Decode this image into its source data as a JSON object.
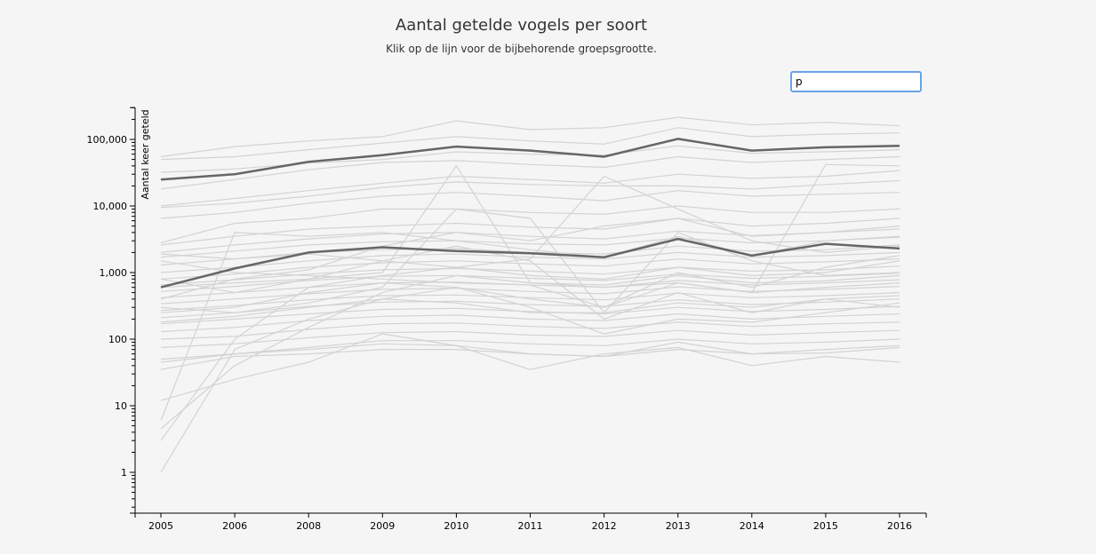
{
  "title": "Aantal getelde vogels per soort",
  "subtitle": "Klik op de lijn voor de bijbehorende groepsgrootte.",
  "search": {
    "value": "p"
  },
  "colors": {
    "background": "#f5f5f5",
    "line_default": "#d3d3d3",
    "line_highlight": "#666666",
    "axis": "#000000"
  },
  "chart_data": {
    "type": "line",
    "title": "Aantal getelde vogels per soort",
    "ylabel": "Aantal keer geteld",
    "xlabel": "",
    "yscale": "log",
    "ylim": [
      0.3,
      300000
    ],
    "categories": [
      "2005",
      "2006",
      "2008",
      "2009",
      "2010",
      "2011",
      "2012",
      "2013",
      "2014",
      "2015",
      "2016"
    ],
    "y_ticks": [
      {
        "value": 1,
        "label": "1"
      },
      {
        "value": 10,
        "label": "10"
      },
      {
        "value": 100,
        "label": "100"
      },
      {
        "value": 1000,
        "label": "1,000"
      },
      {
        "value": 10000,
        "label": "10,000"
      },
      {
        "value": 100000,
        "label": "100,000"
      }
    ],
    "highlighted_series": [
      {
        "values": [
          25000,
          30000,
          46000,
          58000,
          78000,
          68000,
          55000,
          102000,
          68000,
          76000,
          80000
        ]
      },
      {
        "values": [
          600,
          1150,
          2000,
          2400,
          2100,
          1950,
          1700,
          3200,
          1800,
          2700,
          2300
        ]
      }
    ],
    "series": [
      {
        "values": [
          55000,
          78000,
          95000,
          110000,
          190000,
          140000,
          150000,
          215000,
          165000,
          180000,
          160000
        ]
      },
      {
        "values": [
          50000,
          55000,
          70000,
          88000,
          110000,
          95000,
          85000,
          150000,
          110000,
          120000,
          125000
        ]
      },
      {
        "values": [
          32000,
          36000,
          44000,
          50000,
          65000,
          60000,
          58000,
          80000,
          62000,
          65000,
          70000
        ]
      },
      {
        "values": [
          18000,
          25000,
          35000,
          45000,
          48000,
          42000,
          38000,
          55000,
          45000,
          50000,
          55000
        ]
      },
      {
        "values": [
          10000,
          13000,
          17000,
          22000,
          28000,
          25000,
          22000,
          30000,
          26000,
          28000,
          34000
        ]
      },
      {
        "values": [
          9500,
          11000,
          14000,
          19000,
          23000,
          21000,
          20000,
          20000,
          18000,
          21000,
          24000
        ]
      },
      {
        "values": [
          6500,
          8000,
          11000,
          14000,
          16000,
          14000,
          12000,
          17000,
          14000,
          15000,
          16000
        ]
      },
      {
        "values": [
          2800,
          5500,
          6500,
          9000,
          9000,
          8000,
          7500,
          10000,
          8000,
          8000,
          9000
        ]
      },
      {
        "values": [
          2600,
          3500,
          4500,
          5000,
          5500,
          4800,
          4500,
          6500,
          5000,
          5500,
          6500
        ]
      },
      {
        "values": [
          2000,
          2600,
          3200,
          3800,
          4000,
          3500,
          3200,
          4200,
          3600,
          4000,
          4500
        ]
      },
      {
        "values": [
          1700,
          2100,
          2600,
          2900,
          3000,
          2700,
          2600,
          3300,
          2800,
          3000,
          3400
        ]
      },
      {
        "values": [
          1300,
          1600,
          2000,
          2200,
          2300,
          2000,
          1900,
          2500,
          2100,
          2200,
          2600
        ]
      },
      {
        "values": [
          1000,
          1200,
          1500,
          1800,
          1900,
          1700,
          1600,
          2000,
          1700,
          1800,
          2000
        ]
      },
      {
        "values": [
          800,
          950,
          1200,
          1400,
          1500,
          1350,
          1250,
          1600,
          1350,
          1450,
          1600
        ]
      },
      {
        "values": [
          650,
          780,
          950,
          1100,
          1150,
          1050,
          950,
          1200,
          1050,
          1100,
          1250
        ]
      },
      {
        "values": [
          520,
          620,
          760,
          880,
          900,
          820,
          760,
          950,
          820,
          880,
          980
        ]
      },
      {
        "values": [
          420,
          500,
          600,
          700,
          720,
          650,
          600,
          760,
          650,
          700,
          780
        ]
      },
      {
        "values": [
          340,
          400,
          480,
          560,
          580,
          520,
          480,
          610,
          520,
          560,
          620
        ]
      },
      {
        "values": [
          270,
          320,
          390,
          450,
          460,
          420,
          390,
          490,
          420,
          450,
          500
        ]
      },
      {
        "values": [
          210,
          250,
          310,
          360,
          370,
          330,
          310,
          390,
          330,
          360,
          400
        ]
      },
      {
        "values": [
          170,
          200,
          240,
          280,
          290,
          260,
          240,
          300,
          260,
          280,
          310
        ]
      },
      {
        "values": [
          130,
          150,
          190,
          220,
          230,
          200,
          190,
          240,
          200,
          220,
          240
        ]
      },
      {
        "values": [
          100,
          110,
          140,
          170,
          175,
          155,
          145,
          180,
          155,
          170,
          180
        ]
      },
      {
        "values": [
          75,
          85,
          105,
          125,
          130,
          115,
          110,
          135,
          115,
          125,
          135
        ]
      },
      {
        "values": [
          50,
          60,
          75,
          95,
          95,
          85,
          80,
          100,
          85,
          90,
          100
        ]
      },
      {
        "values": [
          45,
          60,
          70,
          85,
          80,
          35,
          60,
          75,
          40,
          55,
          45
        ]
      },
      {
        "values": [
          35,
          55,
          60,
          70,
          70,
          60,
          55,
          70,
          60,
          62,
          75
        ]
      },
      {
        "values": [
          1,
          70,
          200,
          400,
          600,
          400,
          300,
          700,
          500,
          600,
          700
        ]
      },
      {
        "values": [
          3,
          100,
          600,
          900,
          1200,
          900,
          800,
          1200,
          900,
          1000,
          1500
        ]
      },
      {
        "values": [
          4.5,
          40,
          150,
          500,
          900,
          700,
          650,
          900,
          700,
          750,
          900
        ]
      },
      {
        "values": [
          12,
          25,
          45,
          120,
          80,
          60,
          55,
          90,
          60,
          70,
          80
        ]
      },
      {
        "values": [
          6,
          4000,
          3500,
          4000,
          3000,
          2200,
          1700,
          3500,
          1800,
          3000,
          3500
        ]
      },
      {
        "values": [
          1900,
          1600,
          1900,
          1500,
          1200,
          1600,
          28000,
          9000,
          3000,
          2000,
          2500
        ]
      },
      {
        "values": [
          600,
          700,
          800,
          1000,
          40000,
          700,
          600,
          700,
          500,
          42000,
          40000
        ]
      },
      {
        "values": [
          300,
          250,
          350,
          600,
          9000,
          6500,
          250,
          4000,
          1500,
          900,
          1000
        ]
      },
      {
        "values": [
          800,
          500,
          800,
          1500,
          2500,
          1500,
          200,
          500,
          250,
          400,
          300
        ]
      },
      {
        "values": [
          400,
          800,
          1100,
          2500,
          4000,
          3000,
          5000,
          6500,
          3500,
          4000,
          5000
        ]
      },
      {
        "values": [
          250,
          300,
          500,
          700,
          600,
          300,
          120,
          200,
          180,
          250,
          350
        ]
      },
      {
        "values": [
          180,
          220,
          300,
          400,
          350,
          250,
          250,
          350,
          300,
          400,
          450
        ]
      },
      {
        "values": [
          1500,
          1000,
          900,
          800,
          700,
          650,
          300,
          1000,
          600,
          1200,
          1800
        ]
      }
    ]
  }
}
